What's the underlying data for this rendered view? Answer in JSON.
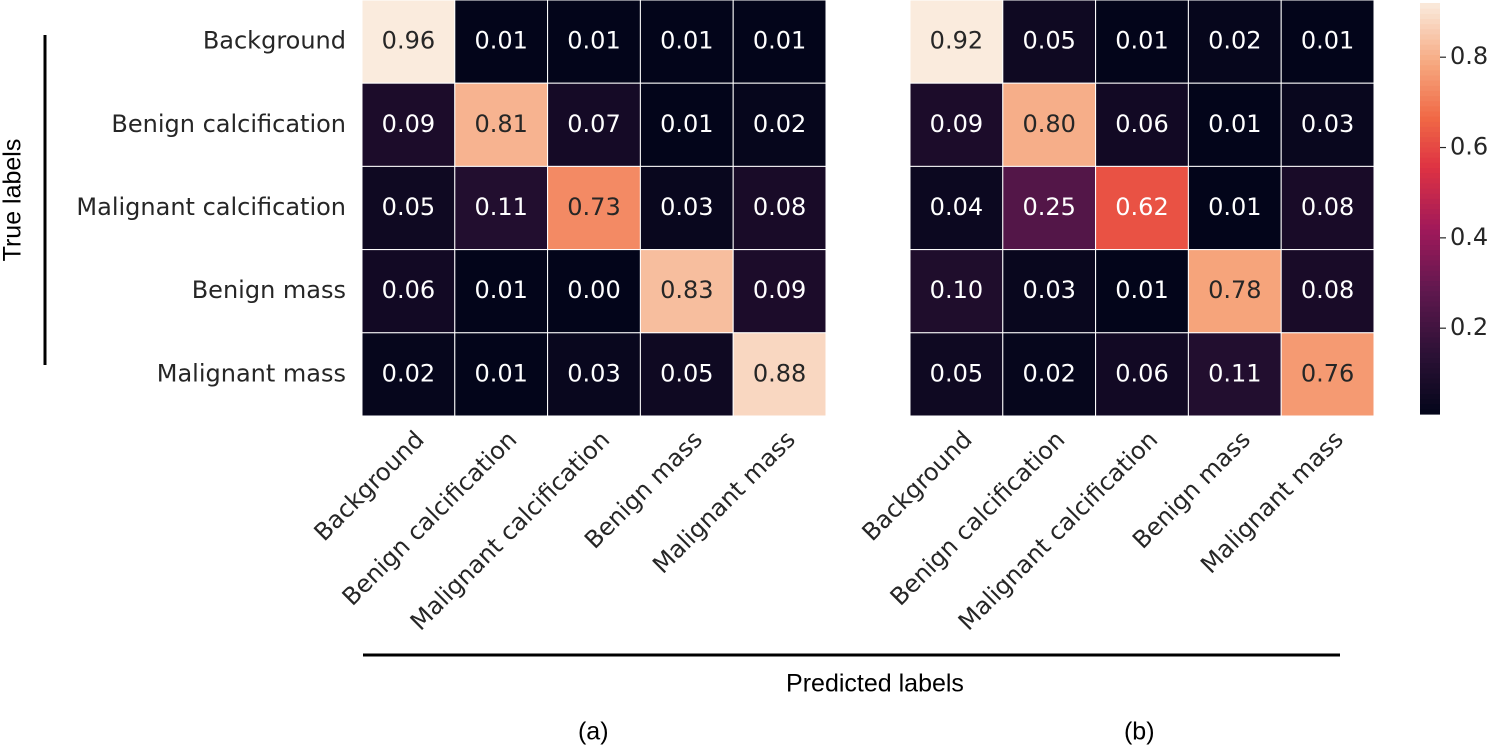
{
  "figure": {
    "ylabel": "True labels",
    "xlabel": "Predicted labels"
  },
  "chart_data": [
    {
      "type": "heatmap",
      "caption": "(a)",
      "categories": [
        "Background",
        "Benign calcification",
        "Malignant calcification",
        "Benign mass",
        "Malignant mass"
      ],
      "y_categories": [
        "Background",
        "Benign calcification",
        "Malignant calcification",
        "Benign mass",
        "Malignant mass"
      ],
      "values": [
        [
          0.96,
          0.01,
          0.01,
          0.01,
          0.01
        ],
        [
          0.09,
          0.81,
          0.07,
          0.01,
          0.02
        ],
        [
          0.05,
          0.11,
          0.73,
          0.03,
          0.08
        ],
        [
          0.06,
          0.01,
          0,
          0.83,
          0.09
        ],
        [
          0.02,
          0.01,
          0.03,
          0.05,
          0.88
        ]
      ],
      "value_labels": [
        [
          "0.96",
          "0.01",
          "0.01",
          "0.01",
          "0.01"
        ],
        [
          "0.09",
          "0.81",
          "0.07",
          "0.01",
          "0.02"
        ],
        [
          "0.05",
          "0.11",
          "0.73",
          "0.03",
          "0.08"
        ],
        [
          "0.06",
          "0.01",
          "0.00",
          "0.83",
          "0.09"
        ],
        [
          "0.02",
          "0.01",
          "0.03",
          "0.05",
          "0.88"
        ]
      ],
      "colormap": "rocket",
      "clim": [
        0.01,
        0.92
      ]
    },
    {
      "type": "heatmap",
      "caption": "(b)",
      "categories": [
        "Background",
        "Benign calcification",
        "Malignant calcification",
        "Benign mass",
        "Malignant mass"
      ],
      "values": [
        [
          0.92,
          0.05,
          0.01,
          0.02,
          0.01
        ],
        [
          0.09,
          0.8,
          0.06,
          0.01,
          0.03
        ],
        [
          0.04,
          0.25,
          0.62,
          0.01,
          0.08
        ],
        [
          0.1,
          0.03,
          0.01,
          0.78,
          0.08
        ],
        [
          0.05,
          0.02,
          0.06,
          0.11,
          0.76
        ]
      ],
      "value_labels": [
        [
          "0.92",
          "0.05",
          "0.01",
          "0.02",
          "0.01"
        ],
        [
          "0.09",
          "0.80",
          "0.06",
          "0.01",
          "0.03"
        ],
        [
          "0.04",
          "0.25",
          "0.62",
          "0.01",
          "0.08"
        ],
        [
          "0.10",
          "0.03",
          "0.01",
          "0.78",
          "0.08"
        ],
        [
          "0.05",
          "0.02",
          "0.06",
          "0.11",
          "0.76"
        ]
      ],
      "colormap": "rocket",
      "clim": [
        0.01,
        0.92
      ],
      "colorbar": true,
      "cticks": [
        0.2,
        0.4,
        0.6,
        0.8
      ]
    }
  ]
}
